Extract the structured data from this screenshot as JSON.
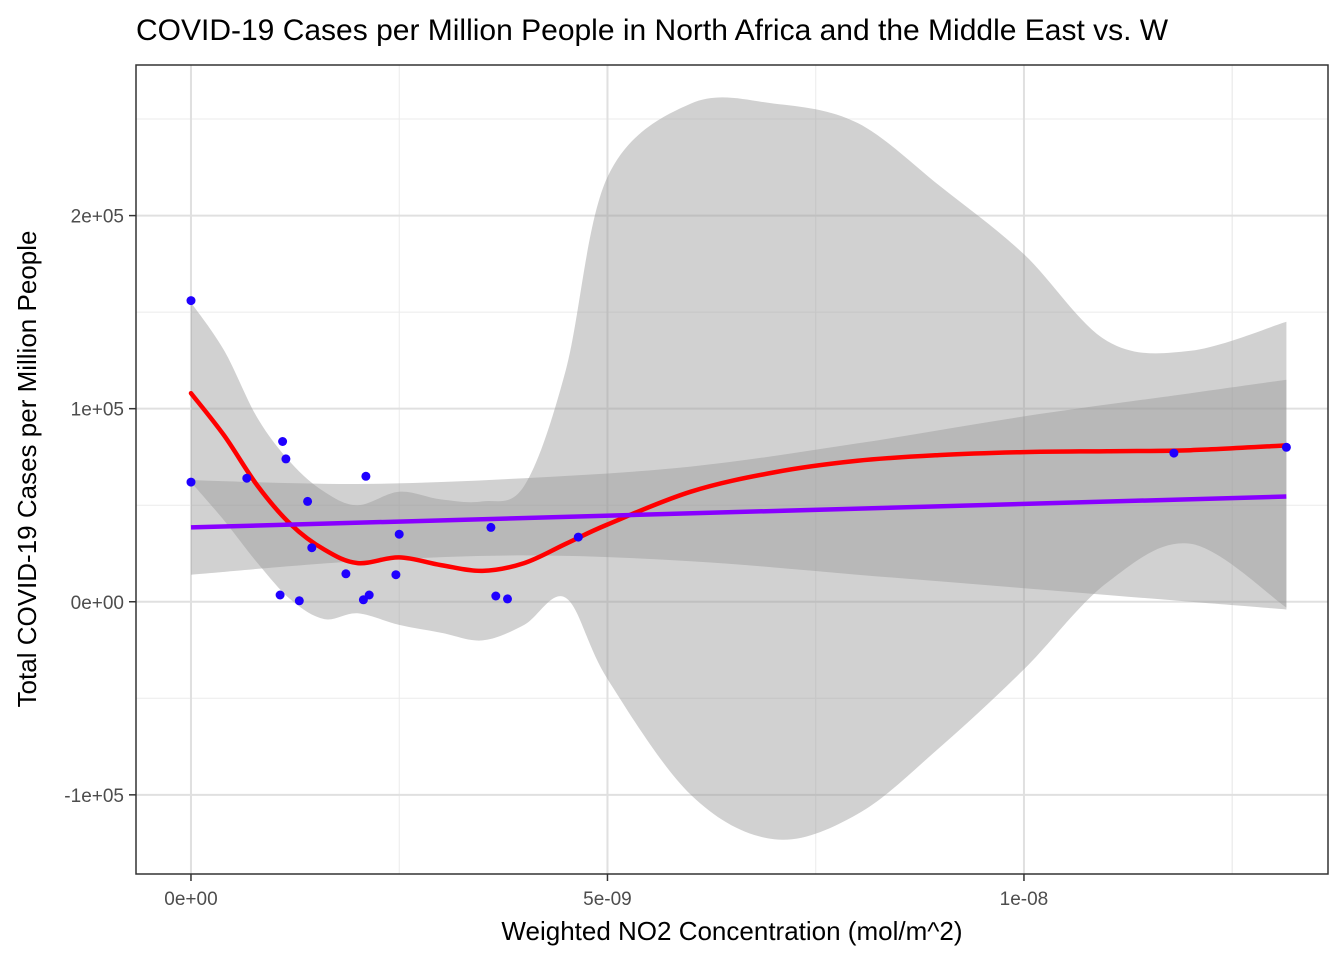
{
  "chart_data": {
    "type": "scatter",
    "title": "COVID-19 Cases per Million People in North Africa and the Middle East vs. W",
    "xlabel": "Weighted NO2 Concentration (mol/m^2)",
    "ylabel": "Total COVID-19 Cases per Million People",
    "xlim": [
      -6.6e-10,
      1.365e-08
    ],
    "ylim": [
      -141000,
      278000
    ],
    "x_ticks": [
      {
        "value": 0,
        "label": "0e+00"
      },
      {
        "value": 5e-09,
        "label": "5e-09"
      },
      {
        "value": 1e-08,
        "label": "1e-08"
      }
    ],
    "y_ticks": [
      {
        "value": -100000,
        "label": "-1e+05"
      },
      {
        "value": 0,
        "label": "0e+00"
      },
      {
        "value": 100000,
        "label": "1e+05"
      },
      {
        "value": 200000,
        "label": "2e+05"
      }
    ],
    "grid": true,
    "colors": {
      "points": "#1f00ff",
      "loess_line": "#ff0000",
      "linear_line": "#8800ff",
      "ribbon": "#999999"
    },
    "points": [
      {
        "x": 0,
        "y": 156000
      },
      {
        "x": 0,
        "y": 62000
      },
      {
        "x": 6.7e-10,
        "y": 64000
      },
      {
        "x": 1.07e-09,
        "y": 3500
      },
      {
        "x": 1.1e-09,
        "y": 83000
      },
      {
        "x": 1.14e-09,
        "y": 74000
      },
      {
        "x": 1.3e-09,
        "y": 500
      },
      {
        "x": 1.4e-09,
        "y": 52000
      },
      {
        "x": 1.45e-09,
        "y": 28000
      },
      {
        "x": 1.86e-09,
        "y": 14500
      },
      {
        "x": 2.07e-09,
        "y": 1000
      },
      {
        "x": 2.1e-09,
        "y": 65000
      },
      {
        "x": 2.14e-09,
        "y": 3500
      },
      {
        "x": 2.46e-09,
        "y": 14000
      },
      {
        "x": 2.5e-09,
        "y": 35000
      },
      {
        "x": 3.6e-09,
        "y": 38500
      },
      {
        "x": 3.66e-09,
        "y": 3000
      },
      {
        "x": 3.8e-09,
        "y": 1500
      },
      {
        "x": 4.65e-09,
        "y": 33500
      },
      {
        "x": 1.18e-08,
        "y": 77000
      },
      {
        "x": 1.315e-08,
        "y": 80000
      }
    ],
    "series": [
      {
        "kind": "loess",
        "x": [
          0,
          4e-10,
          8e-10,
          1.2e-09,
          1.6e-09,
          2e-09,
          2.5e-09,
          3e-09,
          3.5e-09,
          4e-09,
          4.5e-09,
          5e-09,
          6e-09,
          7e-09,
          8e-09,
          9e-09,
          1e-08,
          1.1e-08,
          1.2e-08,
          1.315e-08
        ],
        "y": [
          108000,
          86000,
          60000,
          40000,
          27000,
          20000,
          23000,
          19000,
          16000,
          20000,
          30000,
          40000,
          57000,
          67000,
          73000,
          76000,
          77500,
          78000,
          78500,
          81000
        ],
        "ribbon_lower": [
          62000,
          42000,
          20000,
          1000,
          -9000,
          -6000,
          -12000,
          -16000,
          -20000,
          -12000,
          2000,
          -40000,
          -100000,
          -123000,
          -110000,
          -75000,
          -35000,
          10000,
          30000,
          -3000
        ],
        "ribbon_upper": [
          155000,
          130000,
          95000,
          72000,
          57000,
          50000,
          57000,
          53000,
          52000,
          60000,
          120000,
          220000,
          258000,
          258000,
          248000,
          215000,
          180000,
          135000,
          130000,
          145000
        ]
      },
      {
        "kind": "linear",
        "x": [
          0,
          1.315e-08
        ],
        "y": [
          38500,
          54500
        ],
        "ribbon_x": [
          0,
          2e-09,
          4e-09,
          6e-09,
          8e-09,
          1e-08,
          1.2e-08,
          1.315e-08
        ],
        "ribbon_lower": [
          14000,
          21000,
          24000,
          21000,
          14000,
          7000,
          0,
          -4000
        ],
        "ribbon_upper": [
          63000,
          61000,
          64000,
          70000,
          82000,
          96000,
          108000,
          115000
        ]
      }
    ]
  }
}
